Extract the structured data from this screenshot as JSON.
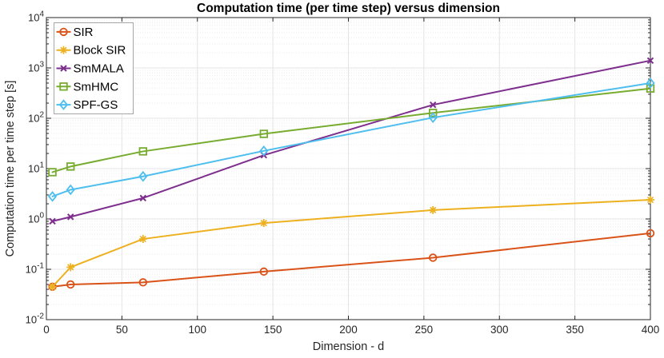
{
  "chart_data": {
    "type": "line",
    "title": "Computation time (per time step) versus dimension",
    "xlabel": "Dimension - d",
    "ylabel": "Computation time per time step [s]",
    "x_scale": "linear",
    "y_scale": "log10",
    "xlim": [
      0,
      400
    ],
    "ylim": [
      0.01,
      10000
    ],
    "ylim_exponents": [
      -2,
      4
    ],
    "x_ticks": [
      0,
      50,
      100,
      150,
      200,
      250,
      300,
      350,
      400
    ],
    "y_tick_exponents": [
      -2,
      -1,
      0,
      1,
      2,
      3,
      4
    ],
    "grid": true,
    "minor_grid": true,
    "legend_position": "top-left-inside",
    "x": [
      4,
      16,
      64,
      144,
      256,
      400
    ],
    "series": [
      {
        "name": "SIR",
        "color": "#D95319",
        "marker": "circle",
        "values": [
          0.045,
          0.05,
          0.055,
          0.09,
          0.17,
          0.52
        ]
      },
      {
        "name": "Block SIR",
        "color": "#EDB120",
        "marker": "asterisk",
        "values": [
          0.045,
          0.11,
          0.4,
          0.83,
          1.5,
          2.4
        ]
      },
      {
        "name": "SmMALA",
        "color": "#7E2F8E",
        "marker": "x",
        "values": [
          0.9,
          1.1,
          2.6,
          18.5,
          185,
          1400
        ]
      },
      {
        "name": "SmHMC",
        "color": "#77AC30",
        "marker": "square",
        "values": [
          8.5,
          11,
          22,
          49,
          128,
          390
        ]
      },
      {
        "name": "SPF-GS",
        "color": "#4DBEEE",
        "marker": "diamond",
        "values": [
          2.8,
          3.8,
          7,
          22.5,
          103,
          500
        ]
      }
    ],
    "style_colors": {
      "axis": "#262626",
      "text": "#262626",
      "major_grid": "#e4e4e4",
      "minor_grid": "#ebebeb",
      "legend_border": "#a6a6a6",
      "legend_bg": "#ffffff"
    }
  }
}
